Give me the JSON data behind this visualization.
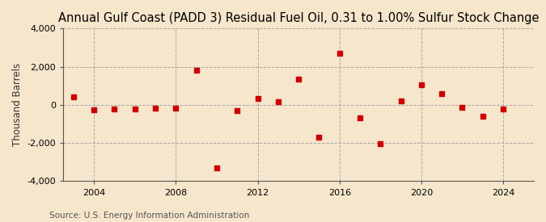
{
  "title": "Annual Gulf Coast (PADD 3) Residual Fuel Oil, 0.31 to 1.00% Sulfur Stock Change",
  "ylabel": "Thousand Barrels",
  "source": "Source: U.S. Energy Information Administration",
  "background_color": "#f5e6cc",
  "plot_background_color": "#f5e6cc",
  "marker_color": "#cc0000",
  "years": [
    2003,
    2004,
    2005,
    2006,
    2007,
    2008,
    2009,
    2010,
    2011,
    2012,
    2013,
    2014,
    2015,
    2016,
    2017,
    2018,
    2019,
    2020,
    2021,
    2022,
    2023,
    2024
  ],
  "values": [
    400,
    -250,
    -200,
    -200,
    -175,
    -175,
    1800,
    -3300,
    -300,
    350,
    150,
    1350,
    -1700,
    2700,
    -700,
    -2050,
    200,
    1050,
    600,
    -150,
    -600,
    -200
  ],
  "ylim": [
    -4000,
    4000
  ],
  "yticks": [
    -4000,
    -2000,
    0,
    2000,
    4000
  ],
  "xtick_years": [
    2004,
    2008,
    2012,
    2016,
    2020,
    2024
  ],
  "xlim": [
    2002.5,
    2025.5
  ],
  "title_fontsize": 10.5,
  "label_fontsize": 8.5,
  "tick_fontsize": 8,
  "source_fontsize": 7.5
}
